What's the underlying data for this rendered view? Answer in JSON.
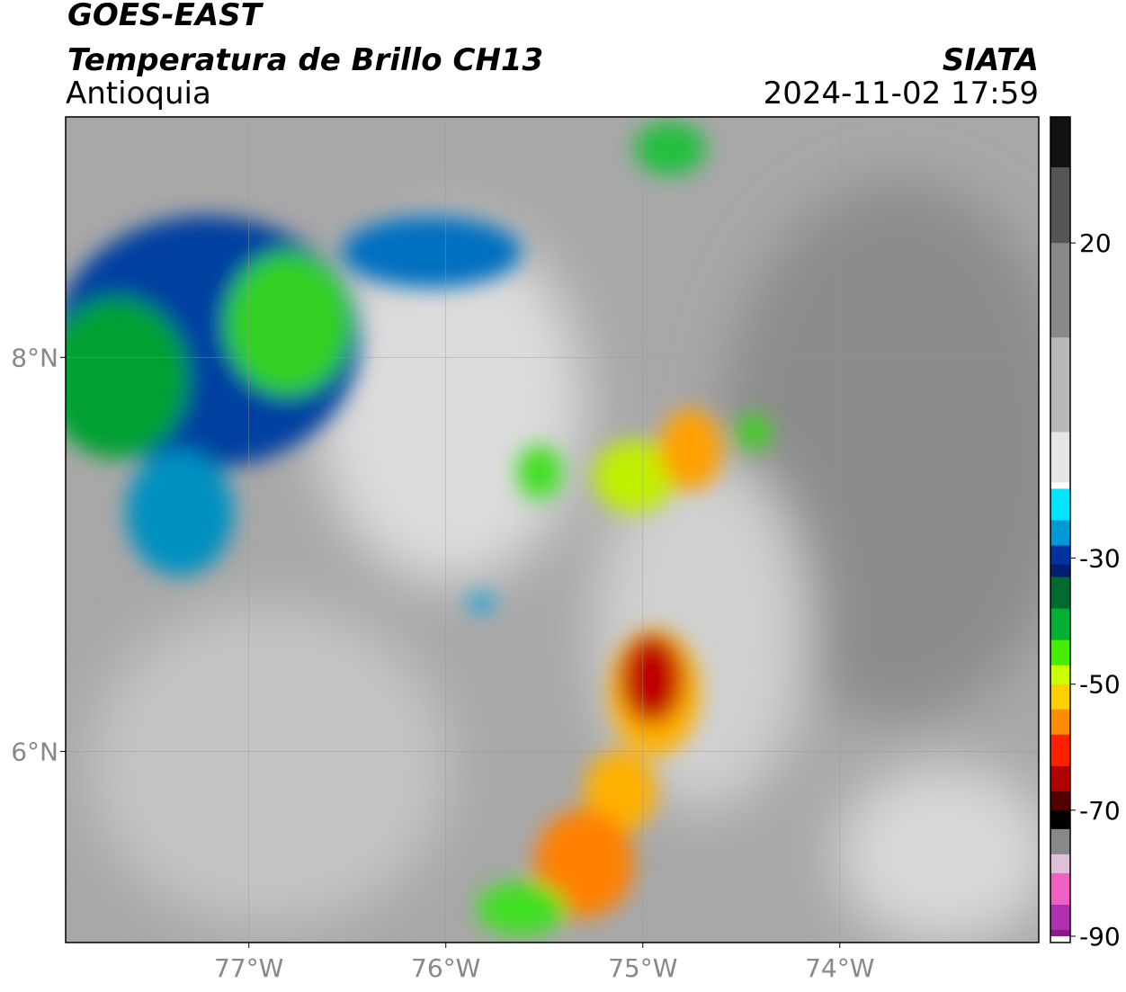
{
  "header": {
    "title": "GOES-EAST",
    "subtitle": "Temperatura de Brillo CH13",
    "region": "Antioquia",
    "source": "SIATA",
    "datetime": "2024-11-02 17:59"
  },
  "map": {
    "xlim": [
      -77.93,
      -72.99
    ],
    "ylim": [
      5.03,
      9.22
    ],
    "xticks": [
      {
        "value": -77,
        "label": "77°W"
      },
      {
        "value": -76,
        "label": "76°W"
      },
      {
        "value": -75,
        "label": "75°W"
      },
      {
        "value": -74,
        "label": "74°W"
      }
    ],
    "yticks": [
      {
        "value": 8,
        "label": "8°N"
      },
      {
        "value": 6,
        "label": "6°N"
      }
    ],
    "grid": true
  },
  "colorbar": {
    "lim": [
      -91,
      40
    ],
    "ticks": [
      20,
      -30,
      -50,
      -70,
      -90
    ],
    "colormap": [
      {
        "value": 40,
        "color": "#111111"
      },
      {
        "value": 32,
        "color": "#555555"
      },
      {
        "value": 20,
        "color": "#888888"
      },
      {
        "value": 5,
        "color": "#b8b8b8"
      },
      {
        "value": -10,
        "color": "#e6e6e6"
      },
      {
        "value": -18,
        "color": "#ffffff"
      },
      {
        "value": -19,
        "color": "#00e5ff"
      },
      {
        "value": -24,
        "color": "#0099d6"
      },
      {
        "value": -28,
        "color": "#0033a0"
      },
      {
        "value": -31,
        "color": "#001f70"
      },
      {
        "value": -33,
        "color": "#006b30"
      },
      {
        "value": -38,
        "color": "#00b030"
      },
      {
        "value": -43,
        "color": "#44ee00"
      },
      {
        "value": -47,
        "color": "#ccff00"
      },
      {
        "value": -50,
        "color": "#ffd000"
      },
      {
        "value": -54,
        "color": "#ff8c00"
      },
      {
        "value": -58,
        "color": "#ff2000"
      },
      {
        "value": -63,
        "color": "#b00000"
      },
      {
        "value": -67,
        "color": "#500000"
      },
      {
        "value": -70,
        "color": "#000000"
      },
      {
        "value": -73,
        "color": "#888888"
      },
      {
        "value": -77,
        "color": "#e0c0d8"
      },
      {
        "value": -80,
        "color": "#f060c0"
      },
      {
        "value": -85,
        "color": "#b030b0"
      },
      {
        "value": -89,
        "color": "#8a1a8a"
      },
      {
        "value": -90,
        "color": "#ffffff"
      }
    ]
  }
}
